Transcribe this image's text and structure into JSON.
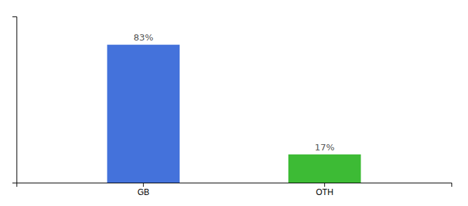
{
  "chart_data": {
    "type": "bar",
    "categories": [
      "GB",
      "OTH"
    ],
    "values": [
      83,
      17
    ],
    "colors": [
      "#4472db",
      "#3dbb35"
    ],
    "value_labels": [
      "83%",
      "17%"
    ],
    "data_labels": true,
    "ylim": [
      0,
      100
    ],
    "tick_labels": "x",
    "grid": false
  }
}
